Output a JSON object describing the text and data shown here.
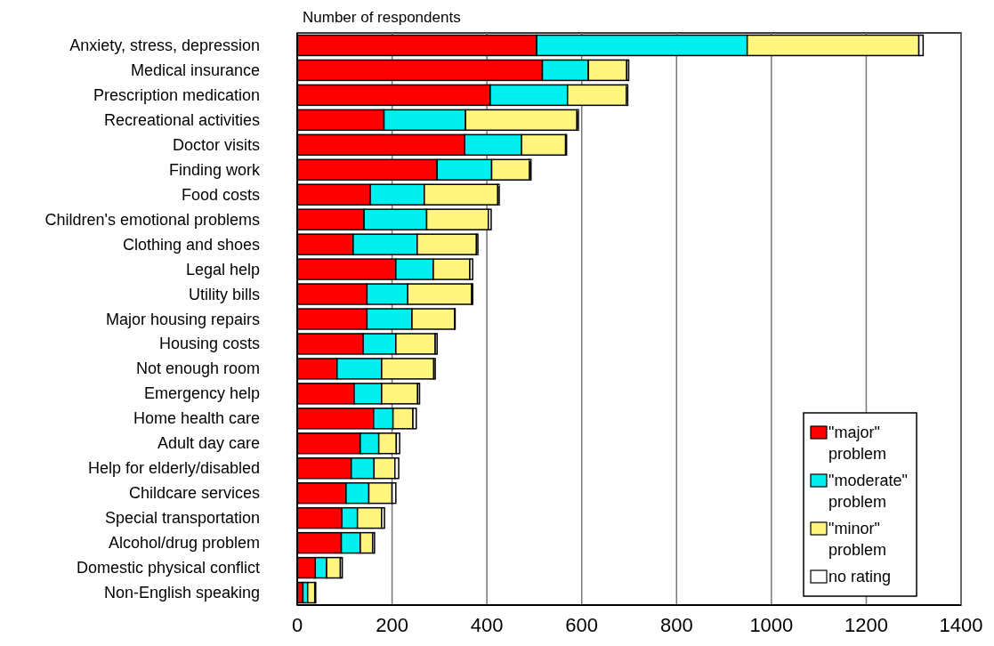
{
  "chart_data": {
    "type": "bar",
    "orientation": "horizontal",
    "stacked": true,
    "xlabel": "Number of respondents",
    "categories": [
      "Anxiety, stress, depression",
      "Medical insurance",
      "Prescription medication",
      "Recreational activities",
      "Doctor visits",
      "Finding work",
      "Food costs",
      "Children's emotional problems",
      "Clothing and shoes",
      "Legal help",
      "Utility bills",
      "Major housing repairs",
      "Housing costs",
      "Not enough room",
      "Emergency help",
      "Home health care",
      "Adult day care",
      "Help for elderly/disabled",
      "Childcare services",
      "Special transportation",
      "Alcohol/drug problem",
      "Domestic physical conflict",
      "Non-English speaking"
    ],
    "series": [
      {
        "name": "\"major\" problem",
        "color": "#ff0000",
        "values": [
          505,
          517,
          407,
          183,
          353,
          295,
          154,
          141,
          118,
          208,
          147,
          147,
          139,
          84,
          120,
          161,
          133,
          114,
          103,
          94,
          93,
          38,
          12
        ]
      },
      {
        "name": "\"moderate\" problem",
        "color": "#00efef",
        "values": [
          444,
          97,
          163,
          172,
          120,
          115,
          114,
          132,
          135,
          79,
          86,
          95,
          69,
          94,
          58,
          41,
          39,
          48,
          48,
          33,
          40,
          24,
          10
        ]
      },
      {
        "name": "\"minor\" problem",
        "color": "#fff57f",
        "values": [
          362,
          81,
          124,
          235,
          93,
          80,
          155,
          130,
          125,
          77,
          135,
          90,
          83,
          110,
          76,
          42,
          37,
          44,
          49,
          51,
          26,
          29,
          15
        ]
      },
      {
        "name": "no rating",
        "color": "#ffffff",
        "values": [
          9,
          4,
          3,
          3,
          2,
          3,
          3,
          6,
          3,
          6,
          2,
          1,
          4,
          3,
          4,
          7,
          7,
          8,
          8,
          6,
          4,
          4,
          2
        ]
      }
    ],
    "xlim": [
      0,
      1400
    ],
    "xticks": [
      0,
      200,
      400,
      600,
      800,
      1000,
      1200,
      1400
    ],
    "grid": "x",
    "legend": "bottom right"
  }
}
